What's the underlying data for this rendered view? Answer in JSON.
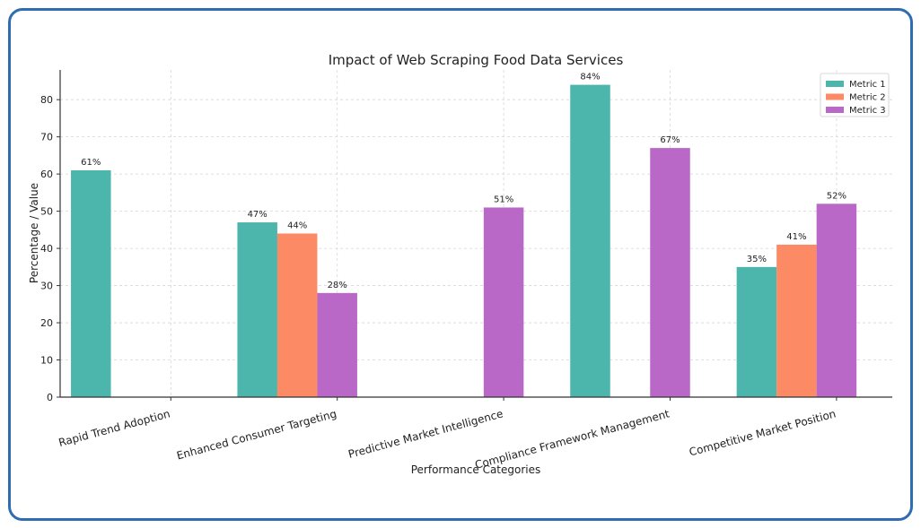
{
  "chart_data": {
    "type": "bar",
    "title": "Impact of Web Scraping Food Data Services",
    "xlabel": "Performance Categories",
    "ylabel": "Percentage / Value",
    "ylim": [
      0,
      88
    ],
    "yticks": [
      0,
      10,
      20,
      30,
      40,
      50,
      60,
      70,
      80
    ],
    "grid": true,
    "legend_position": "top-right",
    "categories": [
      "Rapid Trend Adoption",
      "Enhanced Consumer Targeting",
      "Predictive Market Intelligence",
      "Compliance Framework Management",
      "Competitive Market Position"
    ],
    "series": [
      {
        "name": "Metric 1",
        "color": "#4db6ac",
        "values": [
          61,
          47,
          null,
          84,
          35
        ]
      },
      {
        "name": "Metric 2",
        "color": "#fb8a65",
        "values": [
          null,
          44,
          null,
          null,
          41
        ]
      },
      {
        "name": "Metric 3",
        "color": "#ba68c8",
        "values": [
          null,
          28,
          51,
          67,
          52
        ]
      }
    ],
    "value_suffix": "%"
  },
  "frame": {
    "border_color": "#2f6db3"
  }
}
